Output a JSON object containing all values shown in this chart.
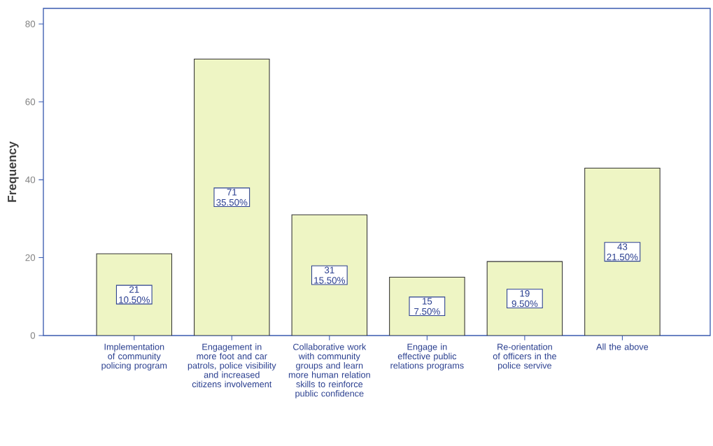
{
  "chart_data": {
    "type": "bar",
    "ylabel": "Frequency",
    "categories": [
      "Implementation of community policing program",
      "Engagement in more foot and car patrols, police visibility and increased citizens involvement",
      "Collaborative work with community groups and learn more human relation skills to reinforce public confidence",
      "Engage in effective public relations programs",
      "Re-orientation of officers in the police servive",
      "All the above"
    ],
    "values": [
      21,
      71,
      31,
      15,
      19,
      43
    ],
    "value_labels": [
      "21 10.50%",
      "71 35.50%",
      "31 15.50%",
      "15 7.50%",
      "19 9.50%",
      "43 21.50%"
    ],
    "color": "#eef5c4",
    "ylim": [
      0,
      84
    ],
    "yticks": [
      0,
      20,
      40,
      60,
      80
    ]
  }
}
